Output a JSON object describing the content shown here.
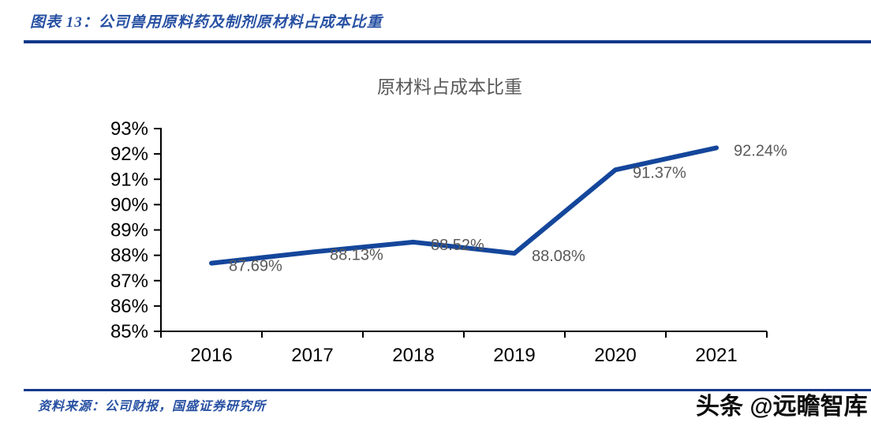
{
  "header": {
    "title": "图表 13：公司兽用原料药及制剂原材料占成本比重"
  },
  "footer": {
    "source": "资料来源：公司财报，国盛证券研究所",
    "watermark": "头条 @远瞻智库"
  },
  "colors": {
    "accent_rule": "#11398A",
    "caption_text": "#2851A3"
  },
  "chart_data": {
    "type": "line",
    "title": "原材料占成本比重",
    "categories": [
      "2016",
      "2017",
      "2018",
      "2019",
      "2020",
      "2021"
    ],
    "series": [
      {
        "name": "原材料占成本比重",
        "values": [
          87.69,
          88.13,
          88.52,
          88.08,
          91.37,
          92.24
        ]
      }
    ],
    "data_labels": [
      "87.69%",
      "88.13%",
      "88.52%",
      "88.08%",
      "91.37%",
      "92.24%"
    ],
    "xlabel": "",
    "ylabel": "",
    "ylim": [
      85,
      93
    ],
    "ytick_step": 1,
    "ytick_suffix": "%",
    "ytick_labels": [
      "85%",
      "86%",
      "87%",
      "88%",
      "89%",
      "90%",
      "91%",
      "92%",
      "93%"
    ],
    "grid": false,
    "legend": "none",
    "colors": {
      "line": "#14469B",
      "data_label": "#595959",
      "title": "#595959",
      "axis": "#000000"
    }
  }
}
